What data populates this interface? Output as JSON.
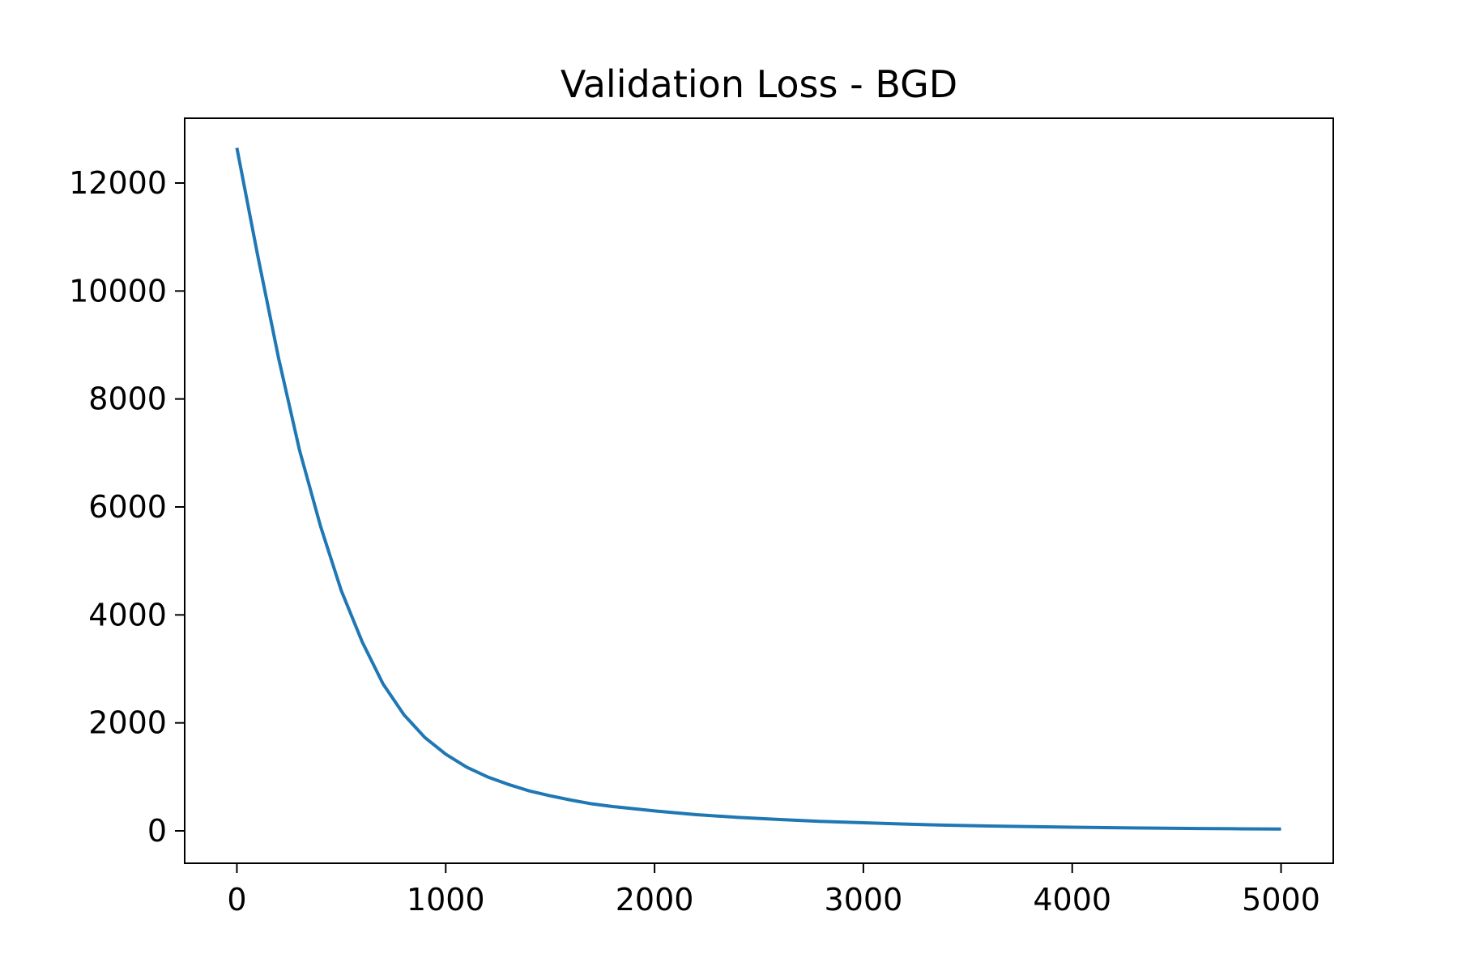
{
  "chart_data": {
    "type": "line",
    "title": "Validation Loss - BGD",
    "xlabel": "",
    "ylabel": "",
    "xlim": [
      -250,
      5250
    ],
    "ylim": [
      -600,
      13200
    ],
    "x_ticks": [
      0,
      1000,
      2000,
      3000,
      4000,
      5000
    ],
    "y_ticks": [
      0,
      2000,
      4000,
      6000,
      8000,
      10000,
      12000
    ],
    "x_tick_labels": [
      "0",
      "1000",
      "2000",
      "3000",
      "4000",
      "5000"
    ],
    "y_tick_labels": [
      "0",
      "2000",
      "4000",
      "6000",
      "8000",
      "10000",
      "12000"
    ],
    "grid": false,
    "legend": "none",
    "series": [
      {
        "color": "#1f77b4",
        "x": [
          0,
          100,
          200,
          300,
          400,
          500,
          600,
          700,
          800,
          900,
          1000,
          1100,
          1200,
          1300,
          1400,
          1500,
          1600,
          1700,
          1800,
          1900,
          2000,
          2200,
          2400,
          2600,
          2800,
          3000,
          3200,
          3400,
          3600,
          3800,
          4000,
          4200,
          4400,
          4600,
          4800,
          5000
        ],
        "y": [
          12650,
          10650,
          8750,
          7050,
          5650,
          4450,
          3500,
          2720,
          2150,
          1730,
          1420,
          1180,
          1000,
          860,
          740,
          650,
          570,
          500,
          450,
          410,
          370,
          300,
          250,
          210,
          175,
          150,
          125,
          105,
          90,
          78,
          68,
          58,
          50,
          44,
          38,
          34
        ]
      }
    ]
  }
}
